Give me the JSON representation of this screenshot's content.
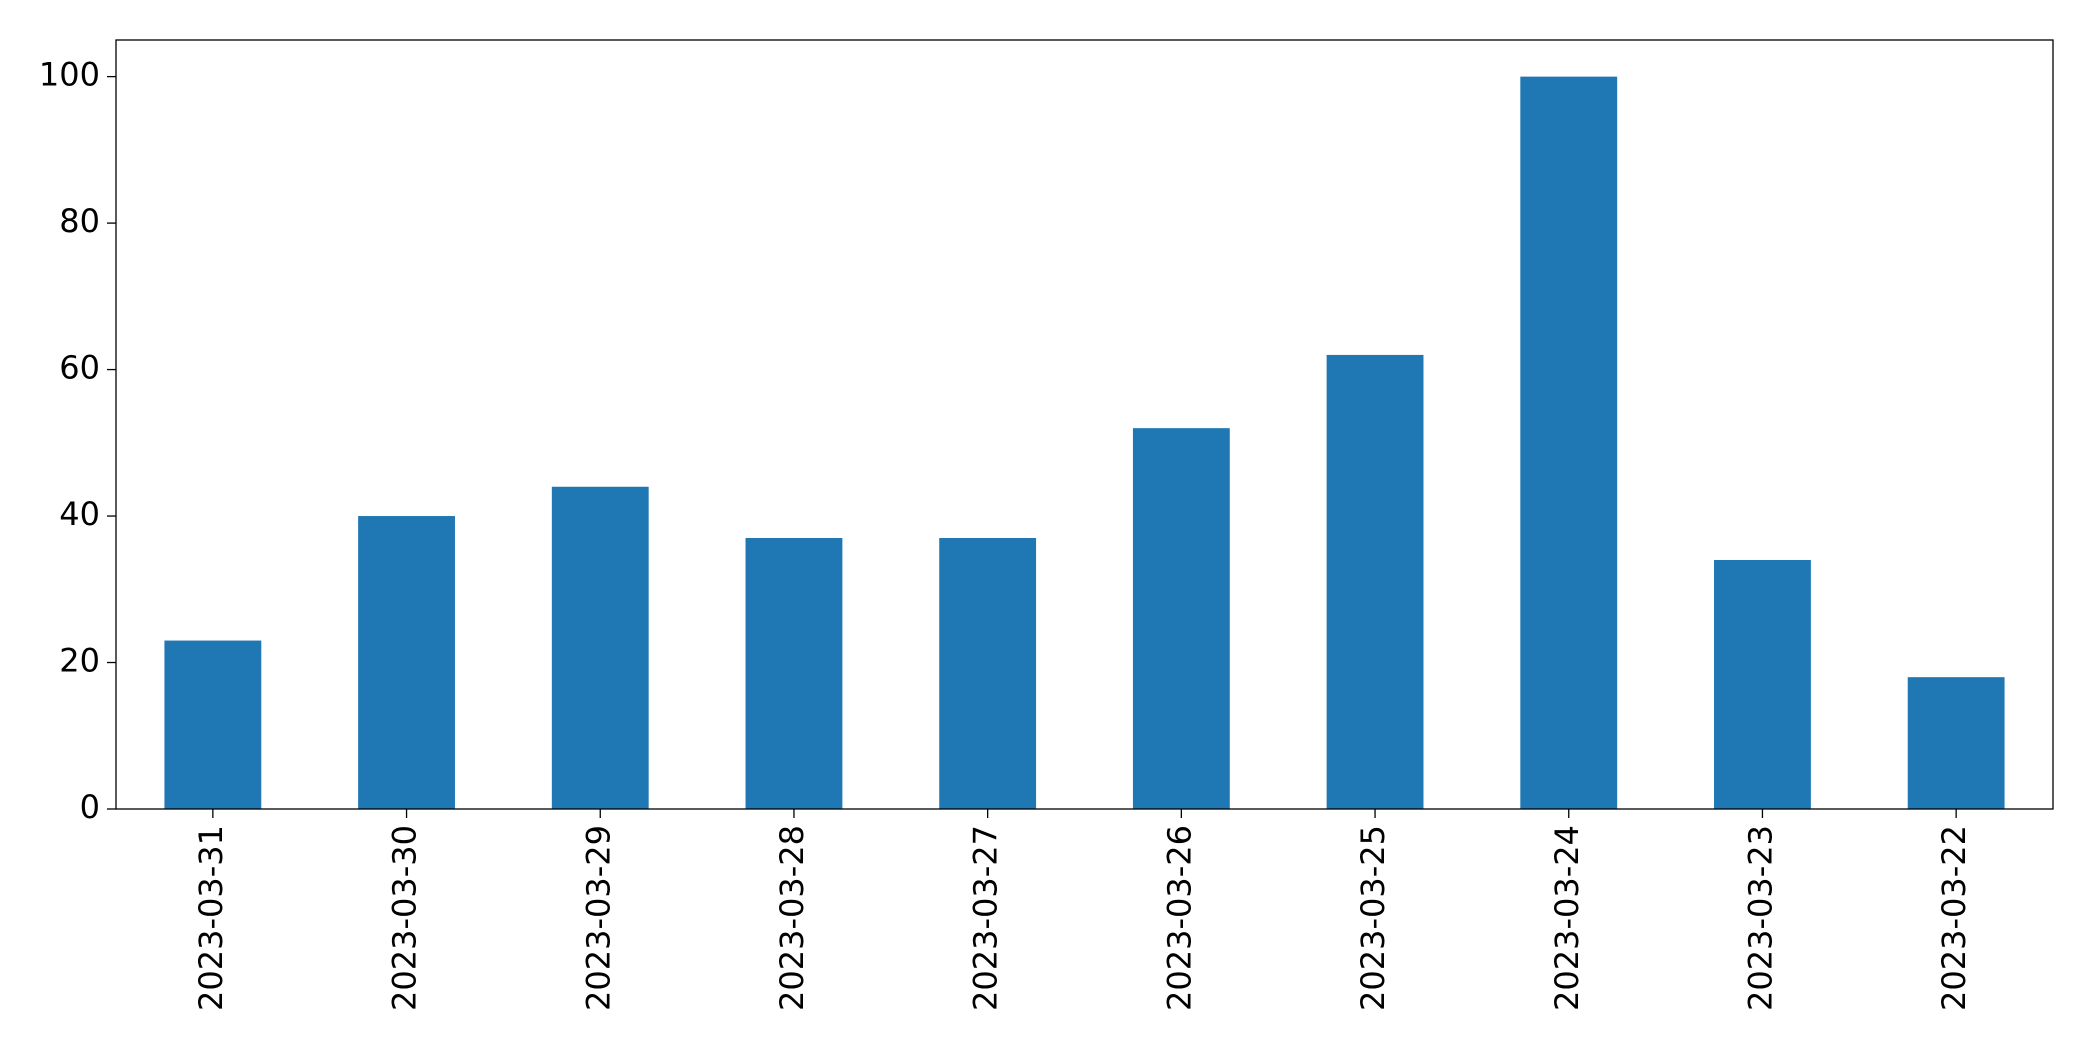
{
  "chart_data": {
    "type": "bar",
    "categories": [
      "2023-03-31",
      "2023-03-30",
      "2023-03-29",
      "2023-03-28",
      "2023-03-27",
      "2023-03-26",
      "2023-03-25",
      "2023-03-24",
      "2023-03-23",
      "2023-03-22"
    ],
    "values": [
      23,
      40,
      44,
      37,
      37,
      52,
      62,
      100,
      34,
      18
    ],
    "color": "#1f77b4",
    "ylim": [
      0,
      105
    ],
    "yticks": [
      0,
      20,
      40,
      60,
      80,
      100
    ],
    "grid": false
  }
}
